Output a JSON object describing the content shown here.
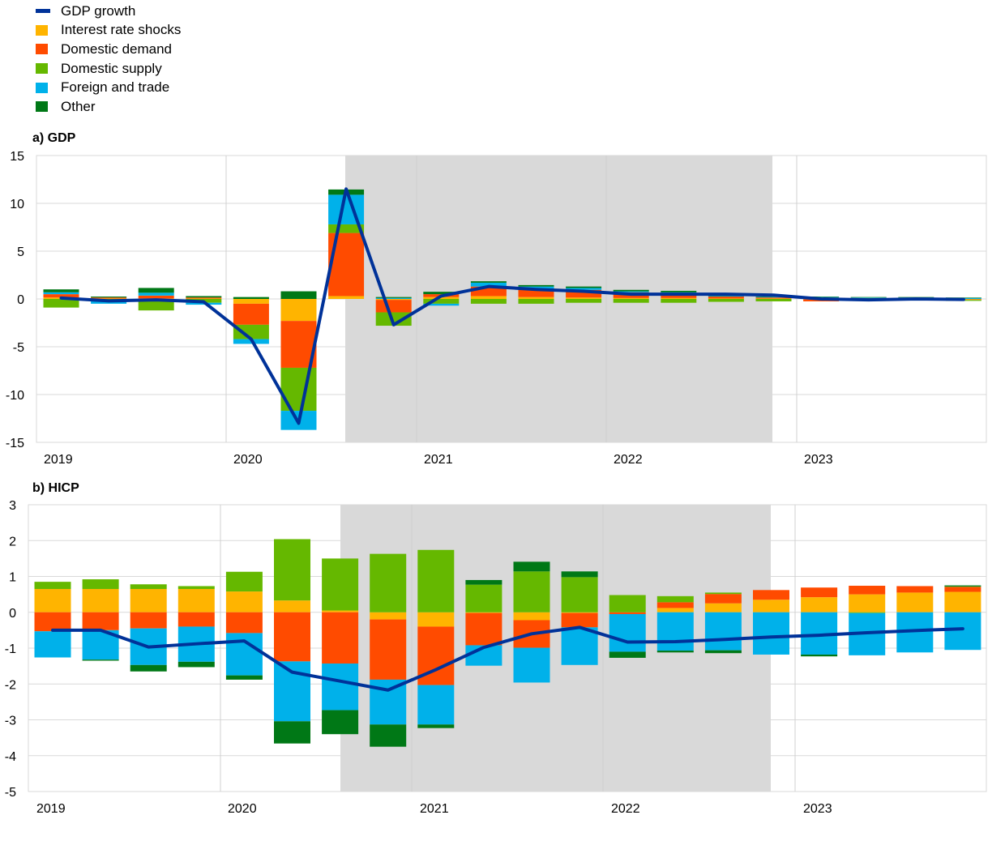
{
  "legend": [
    {
      "label": "GDP growth",
      "color": "#003299",
      "kind": "line"
    },
    {
      "label": "Interest rate shocks",
      "color": "#FFB400",
      "kind": "bar"
    },
    {
      "label": "Domestic demand",
      "color": "#FF4B00",
      "kind": "bar"
    },
    {
      "label": "Domestic supply",
      "color": "#65B800",
      "kind": "bar"
    },
    {
      "label": "Foreign and trade",
      "color": "#00B1EA",
      "kind": "bar"
    },
    {
      "label": "Other",
      "color": "#007816",
      "kind": "bar"
    }
  ],
  "chart_data": [
    {
      "type": "bar",
      "stacked": true,
      "title": "a) GDP",
      "x_ticks": [
        "2019",
        "2020",
        "2021",
        "2022",
        "2023"
      ],
      "ylim": [
        -15,
        15
      ],
      "y_ticks": [
        15,
        10,
        5,
        0,
        -5,
        -10,
        -15
      ],
      "grid": true,
      "shaded_region": {
        "from_quarter": "2020Q3",
        "to_quarter": "2022Q3"
      },
      "categories": [
        "2019Q1",
        "2019Q2",
        "2019Q3",
        "2019Q4",
        "2020Q1",
        "2020Q2",
        "2020Q3",
        "2020Q4",
        "2021Q1",
        "2021Q2",
        "2021Q3",
        "2021Q4",
        "2022Q1",
        "2022Q2",
        "2022Q3",
        "2022Q4",
        "2023Q1",
        "2023Q2",
        "2023Q3",
        "2023Q4"
      ],
      "series": [
        {
          "name": "Interest rate shocks",
          "color": "#FFB400",
          "values": [
            0.15,
            0.05,
            0.05,
            0.05,
            -0.5,
            -2.3,
            0.3,
            -0.1,
            0.2,
            0.3,
            0.2,
            0.15,
            0.1,
            0.1,
            0.05,
            0.05,
            -0.05,
            -0.05,
            -0.05,
            -0.05
          ]
        },
        {
          "name": "Domestic demand",
          "color": "#FF4B00",
          "values": [
            0.35,
            0.1,
            0.3,
            0.1,
            -2.2,
            -4.9,
            6.6,
            -1.3,
            0.3,
            1.0,
            0.9,
            0.8,
            0.6,
            0.5,
            0.2,
            0.1,
            -0.2,
            -0.1,
            -0.1,
            -0.05
          ]
        },
        {
          "name": "Domestic supply",
          "color": "#65B800",
          "values": [
            -0.9,
            -0.1,
            -1.2,
            -0.4,
            -1.5,
            -4.5,
            0.9,
            -1.4,
            -0.5,
            -0.5,
            -0.5,
            -0.4,
            -0.4,
            -0.4,
            -0.3,
            -0.25,
            0.15,
            0.1,
            0.05,
            -0.1
          ]
        },
        {
          "name": "Foreign and trade",
          "color": "#00B1EA",
          "values": [
            0.2,
            -0.4,
            0.3,
            -0.2,
            -0.5,
            -2.0,
            3.1,
            0.1,
            -0.2,
            0.4,
            0.2,
            0.2,
            0.1,
            0.1,
            0.05,
            0.05,
            0.05,
            0.05,
            0.1,
            0.1
          ]
        },
        {
          "name": "Other",
          "color": "#007816",
          "values": [
            0.3,
            0.1,
            0.5,
            0.15,
            0.2,
            0.8,
            0.55,
            0.1,
            0.25,
            0.15,
            0.15,
            0.15,
            0.15,
            0.15,
            0.1,
            0.05,
            0.05,
            0.05,
            0.05,
            0.05
          ]
        }
      ],
      "line": {
        "name": "GDP growth",
        "color": "#003299",
        "values": [
          0.1,
          -0.2,
          -0.1,
          -0.3,
          -4.2,
          -13.0,
          11.5,
          -2.7,
          0.3,
          1.3,
          1.0,
          0.8,
          0.5,
          0.5,
          0.5,
          0.4,
          0.0,
          -0.1,
          0.0,
          -0.05
        ]
      }
    },
    {
      "type": "bar",
      "stacked": true,
      "title": "b) HICP",
      "x_ticks": [
        "2019",
        "2020",
        "2021",
        "2022",
        "2023"
      ],
      "ylim": [
        -5,
        3
      ],
      "y_ticks": [
        3,
        2,
        1,
        0,
        -1,
        -2,
        -3,
        -4,
        -5
      ],
      "grid": true,
      "shaded_region": {
        "from_quarter": "2020Q3",
        "to_quarter": "2022Q3"
      },
      "categories": [
        "2019Q1",
        "2019Q2",
        "2019Q3",
        "2019Q4",
        "2020Q1",
        "2020Q2",
        "2020Q3",
        "2020Q4",
        "2021Q1",
        "2021Q2",
        "2021Q3",
        "2021Q4",
        "2022Q1",
        "2022Q2",
        "2022Q3",
        "2022Q4",
        "2023Q1",
        "2023Q2",
        "2023Q3",
        "2023Q4"
      ],
      "series": [
        {
          "name": "Interest rate shocks",
          "color": "#FFB400",
          "values": [
            0.65,
            0.65,
            0.65,
            0.65,
            0.58,
            0.33,
            0.05,
            -0.2,
            -0.4,
            -0.02,
            -0.22,
            -0.02,
            0.0,
            0.12,
            0.25,
            0.35,
            0.42,
            0.5,
            0.55,
            0.57
          ]
        },
        {
          "name": "Domestic demand",
          "color": "#FF4B00",
          "values": [
            -0.53,
            -0.5,
            -0.45,
            -0.4,
            -0.58,
            -1.37,
            -1.43,
            -1.68,
            -1.63,
            -0.9,
            -0.77,
            -0.4,
            -0.05,
            0.16,
            0.26,
            0.27,
            0.27,
            0.24,
            0.18,
            0.14
          ]
        },
        {
          "name": "Domestic supply",
          "color": "#65B800",
          "values": [
            0.2,
            0.27,
            0.13,
            0.08,
            0.55,
            1.71,
            1.45,
            1.63,
            1.74,
            0.77,
            1.14,
            0.98,
            0.48,
            0.17,
            0.04,
            0.0,
            0.0,
            -0.02,
            0.0,
            0.01
          ]
        },
        {
          "name": "Foreign and trade",
          "color": "#00B1EA",
          "values": [
            -0.73,
            -0.82,
            -1.02,
            -0.98,
            -1.18,
            -1.67,
            -1.3,
            -1.25,
            -1.1,
            -0.57,
            -0.97,
            -1.05,
            -1.05,
            -1.07,
            -1.06,
            -1.18,
            -1.18,
            -1.18,
            -1.12,
            -1.05
          ]
        },
        {
          "name": "Other",
          "color": "#007816",
          "values": [
            0.0,
            -0.03,
            -0.18,
            -0.15,
            -0.12,
            -0.62,
            -0.67,
            -0.62,
            -0.1,
            0.13,
            0.27,
            0.16,
            -0.17,
            -0.05,
            -0.08,
            0.0,
            -0.05,
            0.0,
            0.0,
            0.03
          ]
        }
      ],
      "line": {
        "name": "GDP growth",
        "color": "#003299",
        "values": [
          -0.5,
          -0.5,
          -0.97,
          -0.88,
          -0.8,
          -1.67,
          -1.92,
          -2.17,
          -1.6,
          -0.98,
          -0.6,
          -0.42,
          -0.83,
          -0.82,
          -0.76,
          -0.69,
          -0.64,
          -0.57,
          -0.51,
          -0.46
        ]
      }
    }
  ]
}
